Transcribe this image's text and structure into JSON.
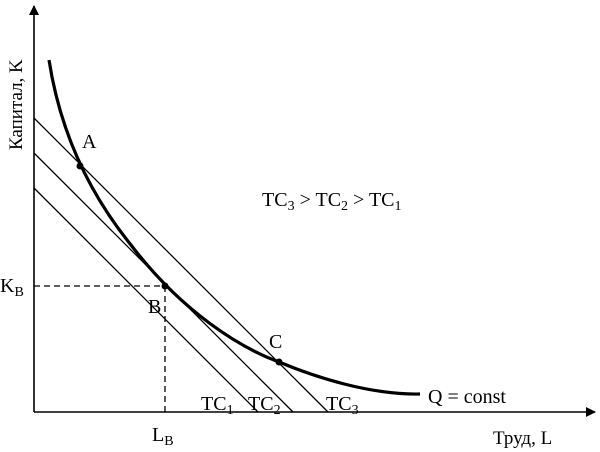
{
  "axes": {
    "y_label": "Капитал, K",
    "x_label": "Труд, L"
  },
  "points": {
    "a": "A",
    "b": "B",
    "c": "C"
  },
  "reference": {
    "k_b_main": "K",
    "k_b_sub": "B",
    "l_b_main": "L",
    "l_b_sub": "B"
  },
  "isocosts": [
    {
      "main": "TC",
      "sub": "1"
    },
    {
      "main": "TC",
      "sub": "2"
    },
    {
      "main": "TC",
      "sub": "3"
    }
  ],
  "isoquant_label": "Q = const",
  "relation": {
    "t1": "TC",
    "s1": "3",
    "op1": " > ",
    "t2": "TC",
    "s2": "2",
    "op2": " > ",
    "t3": "TC",
    "s3": "1"
  },
  "colors": {
    "ink": "#000000",
    "background": "#ffffff"
  }
}
